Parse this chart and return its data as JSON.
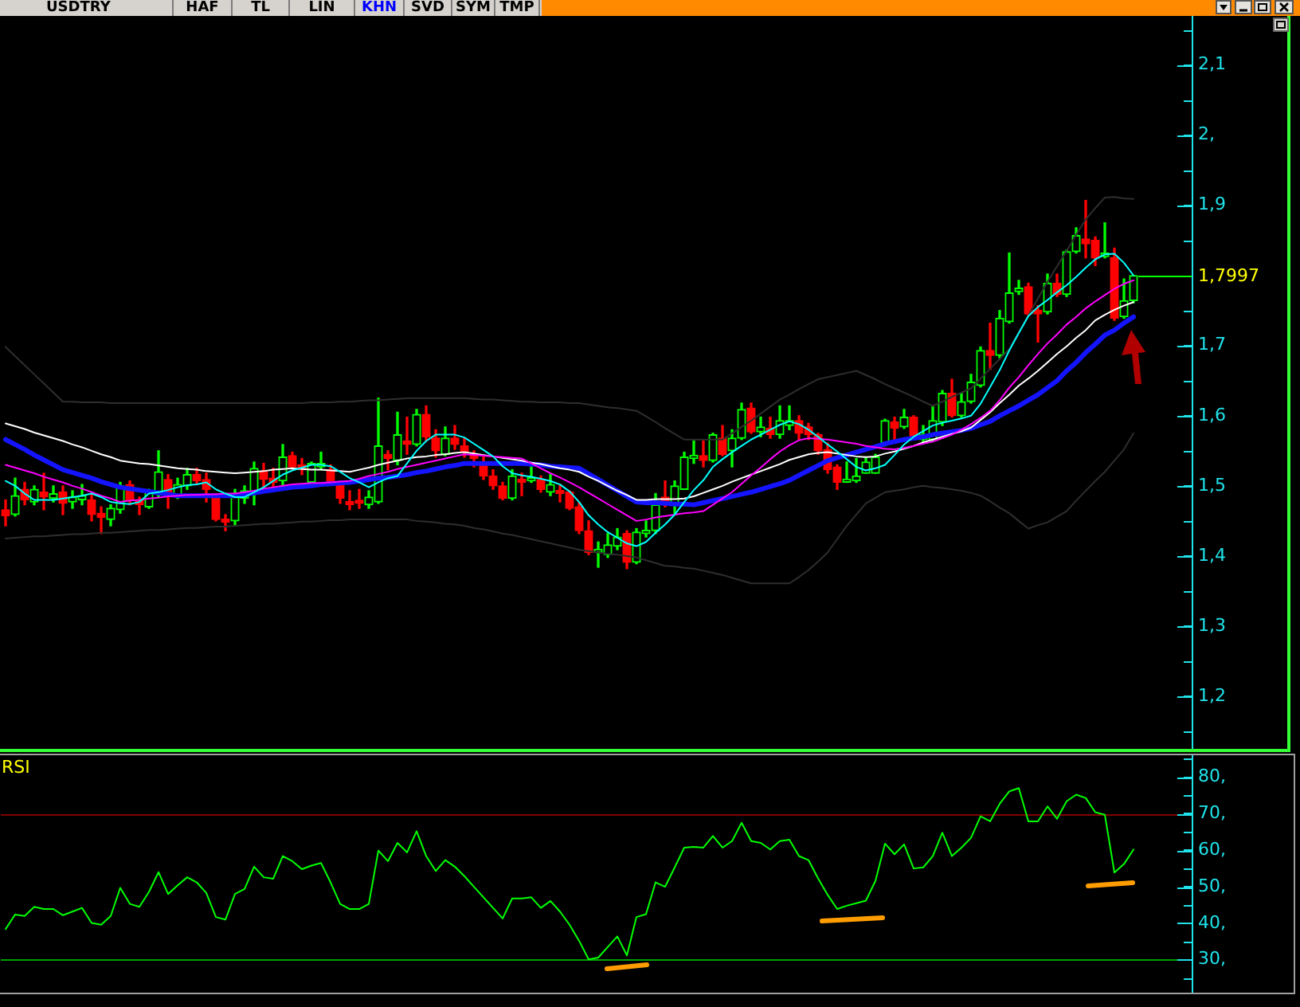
{
  "chart_data": [
    {
      "type": "candlestick",
      "title": "USDTRY",
      "annotations": [
        "HAF",
        "TL",
        "LIN",
        "KHN",
        "SVD",
        "SYM",
        "TMP"
      ],
      "categories": [
        null,
        null,
        null,
        null,
        null,
        null,
        null,
        null,
        null,
        null,
        null,
        null,
        null,
        null,
        null,
        null,
        null,
        null,
        null,
        null,
        null,
        null,
        null,
        null,
        null,
        null,
        null,
        null,
        null,
        null,
        null,
        null,
        null,
        null,
        null,
        null,
        null,
        null,
        null,
        null,
        null,
        null,
        null,
        null,
        null,
        null,
        null,
        null,
        null,
        null,
        null,
        null,
        null,
        null,
        null,
        null,
        null,
        null,
        null,
        null,
        null,
        null,
        null,
        null,
        null,
        null,
        null,
        null,
        null,
        null,
        null,
        null,
        null,
        null,
        null,
        null,
        null,
        null,
        null,
        null,
        null,
        null,
        null,
        null,
        null,
        null,
        null,
        null,
        null,
        null,
        null,
        null,
        null,
        null,
        null,
        null,
        null,
        null,
        null,
        null,
        null,
        null,
        null,
        null,
        null,
        null,
        null,
        null,
        null,
        null,
        null,
        null,
        null,
        null,
        null,
        null,
        null,
        null,
        null
      ],
      "ohlc": [
        [
          1.466,
          1.48,
          1.443,
          1.457
        ],
        [
          1.459,
          1.511,
          1.457,
          1.486
        ],
        [
          1.495,
          1.505,
          1.473,
          1.48
        ],
        [
          1.477,
          1.5,
          1.473,
          1.495
        ],
        [
          1.491,
          1.518,
          1.466,
          1.484
        ],
        [
          1.482,
          1.5,
          1.477,
          1.489
        ],
        [
          1.491,
          1.5,
          1.459,
          1.475
        ],
        [
          1.477,
          1.493,
          1.468,
          1.484
        ],
        [
          1.48,
          1.502,
          1.473,
          1.486
        ],
        [
          1.48,
          1.489,
          1.45,
          1.459
        ],
        [
          1.461,
          1.47,
          1.432,
          1.455
        ],
        [
          1.452,
          1.473,
          1.443,
          1.468
        ],
        [
          1.466,
          1.505,
          1.461,
          1.5
        ],
        [
          1.502,
          1.507,
          1.473,
          1.48
        ],
        [
          1.48,
          1.484,
          1.459,
          1.473
        ],
        [
          1.47,
          1.495,
          1.468,
          1.493
        ],
        [
          1.489,
          1.55,
          1.484,
          1.52
        ],
        [
          1.509,
          1.516,
          1.468,
          1.491
        ],
        [
          1.486,
          1.511,
          1.482,
          1.502
        ],
        [
          1.5,
          1.525,
          1.495,
          1.516
        ],
        [
          1.516,
          1.525,
          1.502,
          1.507
        ],
        [
          1.509,
          1.518,
          1.477,
          1.495
        ],
        [
          1.482,
          1.489,
          1.45,
          1.452
        ],
        [
          1.452,
          1.459,
          1.436,
          1.448
        ],
        [
          1.45,
          1.495,
          1.443,
          1.484
        ],
        [
          1.482,
          1.5,
          1.475,
          1.493
        ],
        [
          1.491,
          1.534,
          1.473,
          1.525
        ],
        [
          1.52,
          1.532,
          1.498,
          1.509
        ],
        [
          1.511,
          1.525,
          1.495,
          1.505
        ],
        [
          1.507,
          1.559,
          1.5,
          1.541
        ],
        [
          1.543,
          1.548,
          1.523,
          1.527
        ],
        [
          1.53,
          1.539,
          1.516,
          1.523
        ],
        [
          1.505,
          1.534,
          1.502,
          1.532
        ],
        [
          1.527,
          1.548,
          1.523,
          1.532
        ],
        [
          1.523,
          1.53,
          1.502,
          1.505
        ],
        [
          1.505,
          1.507,
          1.475,
          1.482
        ],
        [
          1.477,
          1.493,
          1.466,
          1.473
        ],
        [
          1.477,
          1.495,
          1.468,
          1.475
        ],
        [
          1.473,
          1.493,
          1.468,
          1.484
        ],
        [
          1.477,
          1.625,
          1.475,
          1.557
        ],
        [
          1.545,
          1.55,
          1.523,
          1.539
        ],
        [
          1.536,
          1.605,
          1.53,
          1.573
        ],
        [
          1.564,
          1.598,
          1.545,
          1.559
        ],
        [
          1.559,
          1.609,
          1.557,
          1.602
        ],
        [
          1.602,
          1.614,
          1.564,
          1.57
        ],
        [
          1.568,
          1.58,
          1.541,
          1.55
        ],
        [
          1.545,
          1.584,
          1.543,
          1.568
        ],
        [
          1.568,
          1.586,
          1.552,
          1.559
        ],
        [
          1.557,
          1.568,
          1.541,
          1.548
        ],
        [
          1.545,
          1.55,
          1.527,
          1.539
        ],
        [
          1.534,
          1.541,
          1.509,
          1.514
        ],
        [
          1.514,
          1.523,
          1.495,
          1.5
        ],
        [
          1.5,
          1.505,
          1.48,
          1.482
        ],
        [
          1.482,
          1.523,
          1.48,
          1.514
        ],
        [
          1.507,
          1.518,
          1.486,
          1.505
        ],
        [
          1.507,
          1.527,
          1.505,
          1.511
        ],
        [
          1.509,
          1.514,
          1.491,
          1.495
        ],
        [
          1.491,
          1.516,
          1.486,
          1.502
        ],
        [
          1.491,
          1.502,
          1.477,
          1.489
        ],
        [
          1.491,
          1.493,
          1.466,
          1.468
        ],
        [
          1.47,
          1.477,
          1.432,
          1.436
        ],
        [
          1.436,
          1.45,
          1.402,
          1.405
        ],
        [
          1.405,
          1.42,
          1.384,
          1.407
        ],
        [
          1.402,
          1.432,
          1.398,
          1.416
        ],
        [
          1.414,
          1.439,
          1.409,
          1.427
        ],
        [
          1.432,
          1.436,
          1.382,
          1.391
        ],
        [
          1.391,
          1.439,
          1.389,
          1.434
        ],
        [
          1.432,
          1.45,
          1.427,
          1.436
        ],
        [
          1.436,
          1.489,
          1.432,
          1.473
        ],
        [
          1.484,
          1.507,
          1.47,
          1.473
        ],
        [
          1.473,
          1.507,
          1.461,
          1.5
        ],
        [
          1.495,
          1.548,
          1.495,
          1.541
        ],
        [
          1.539,
          1.564,
          1.532,
          1.541
        ],
        [
          1.543,
          1.564,
          1.527,
          1.536
        ],
        [
          1.536,
          1.575,
          1.534,
          1.573
        ],
        [
          1.568,
          1.586,
          1.543,
          1.545
        ],
        [
          1.55,
          1.58,
          1.527,
          1.568
        ],
        [
          1.568,
          1.618,
          1.566,
          1.609
        ],
        [
          1.611,
          1.618,
          1.575,
          1.577
        ],
        [
          1.577,
          1.598,
          1.57,
          1.584
        ],
        [
          1.582,
          1.598,
          1.568,
          1.573
        ],
        [
          1.573,
          1.614,
          1.568,
          1.593
        ],
        [
          1.586,
          1.614,
          1.58,
          1.593
        ],
        [
          1.593,
          1.6,
          1.566,
          1.575
        ],
        [
          1.584,
          1.589,
          1.566,
          1.573
        ],
        [
          1.573,
          1.575,
          1.545,
          1.55
        ],
        [
          1.552,
          1.561,
          1.518,
          1.523
        ],
        [
          1.527,
          1.53,
          1.495,
          1.505
        ],
        [
          1.505,
          1.534,
          1.505,
          1.509
        ],
        [
          1.507,
          1.539,
          1.505,
          1.514
        ],
        [
          1.518,
          1.541,
          1.518,
          1.534
        ],
        [
          1.518,
          1.545,
          1.518,
          1.541
        ],
        [
          1.561,
          1.595,
          1.557,
          1.593
        ],
        [
          1.591,
          1.598,
          1.564,
          1.582
        ],
        [
          1.584,
          1.609,
          1.582,
          1.598
        ],
        [
          1.598,
          1.6,
          1.566,
          1.568
        ],
        [
          1.566,
          1.586,
          1.561,
          1.573
        ],
        [
          1.566,
          1.614,
          1.564,
          1.593
        ],
        [
          1.591,
          1.636,
          1.586,
          1.632
        ],
        [
          1.632,
          1.652,
          1.598,
          1.6
        ],
        [
          1.6,
          1.632,
          1.598,
          1.62
        ],
        [
          1.62,
          1.659,
          1.618,
          1.648
        ],
        [
          1.643,
          1.698,
          1.641,
          1.693
        ],
        [
          1.693,
          1.732,
          1.666,
          1.686
        ],
        [
          1.686,
          1.75,
          1.682,
          1.739
        ],
        [
          1.734,
          1.832,
          1.732,
          1.775
        ],
        [
          1.777,
          1.793,
          1.773,
          1.782
        ],
        [
          1.784,
          1.789,
          1.743,
          1.745
        ],
        [
          1.75,
          1.757,
          1.705,
          1.745
        ],
        [
          1.748,
          1.802,
          1.745,
          1.789
        ],
        [
          1.789,
          1.802,
          1.77,
          1.773
        ],
        [
          1.773,
          1.836,
          1.77,
          1.834
        ],
        [
          1.834,
          1.868,
          1.832,
          1.857
        ],
        [
          1.852,
          1.907,
          1.825,
          1.845
        ],
        [
          1.85,
          1.855,
          1.814,
          1.825
        ],
        [
          1.827,
          1.875,
          1.825,
          1.832
        ],
        [
          1.825,
          1.839,
          1.736,
          1.739
        ],
        [
          1.741,
          1.795,
          1.739,
          1.764
        ],
        [
          1.764,
          1.8,
          1.761,
          1.7997
        ]
      ],
      "colors": [
        "#ff0000",
        "#00ff00",
        "#ff0000",
        "#00ff00",
        "#ff0000",
        "#00ff00",
        "#ff0000",
        "#00ff00",
        "#00ff00",
        "#ff0000",
        "#ff0000",
        "#00ff00",
        "#00ff00",
        "#ff0000",
        "#ff0000",
        "#00ff00",
        "#00ff00",
        "#ff0000",
        "#00ff00",
        "#00ff00",
        "#ff0000",
        "#ff0000",
        "#ff0000",
        "#ff0000",
        "#00ff00",
        "#00ff00",
        "#00ff00",
        "#ff0000",
        "#ff0000",
        "#00ff00",
        "#ff0000",
        "#ff0000",
        "#00ff00",
        "#00ff00",
        "#ff0000",
        "#ff0000",
        "#ff0000",
        "#ff0000",
        "#00ff00",
        "#00ff00",
        "#ff0000",
        "#00ff00",
        "#ff0000",
        "#00ff00",
        "#ff0000",
        "#ff0000",
        "#00ff00",
        "#ff0000",
        "#ff0000",
        "#ff0000",
        "#ff0000",
        "#ff0000",
        "#ff0000",
        "#00ff00",
        "#ff0000",
        "#00ff00",
        "#ff0000",
        "#00ff00",
        "#ff0000",
        "#ff0000",
        "#ff0000",
        "#ff0000",
        "#00ff00",
        "#00ff00",
        "#00ff00",
        "#ff0000",
        "#00ff00",
        "#00ff00",
        "#00ff00",
        "#ff0000",
        "#00ff00",
        "#00ff00",
        "#00ff00",
        "#ff0000",
        "#00ff00",
        "#ff0000",
        "#00ff00",
        "#00ff00",
        "#ff0000",
        "#00ff00",
        "#ff0000",
        "#00ff00",
        "#00ff00",
        "#ff0000",
        "#ff0000",
        "#ff0000",
        "#ff0000",
        "#ff0000",
        "#00ff00",
        "#00ff00",
        "#00ff00",
        "#00ff00",
        "#00ff00",
        "#ff0000",
        "#00ff00",
        "#ff0000",
        "#00ff00",
        "#00ff00",
        "#00ff00",
        "#ff0000",
        "#00ff00",
        "#00ff00",
        "#00ff00",
        "#ff0000",
        "#00ff00",
        "#00ff00",
        "#00ff00",
        "#ff0000",
        "#ff0000",
        "#00ff00",
        "#ff0000",
        "#00ff00",
        "#00ff00",
        "#ff0000",
        "#ff0000",
        "#00ff00",
        "#ff0000",
        "#00ff00",
        "#00ff00"
      ],
      "series": [
        {
          "type": "line",
          "color": "#2e2e2e",
          "values": [
            1.698,
            1.685,
            1.672,
            1.659,
            1.646,
            1.633,
            1.62,
            1.62,
            1.619,
            1.619,
            1.619,
            1.618,
            1.618,
            1.618,
            1.618,
            1.618,
            1.618,
            1.618,
            1.618,
            1.618,
            1.618,
            1.618,
            1.618,
            1.618,
            1.618,
            1.618,
            1.618,
            1.618,
            1.618,
            1.618,
            1.618,
            1.618,
            1.619,
            1.619,
            1.619,
            1.62,
            1.62,
            1.621,
            1.622,
            1.622,
            1.623,
            1.624,
            1.625,
            1.625,
            1.625,
            1.625,
            1.625,
            1.625,
            1.625,
            1.624,
            1.623,
            1.623,
            1.622,
            1.621,
            1.62,
            1.62,
            1.619,
            1.619,
            1.619,
            1.618,
            1.618,
            1.616,
            1.614,
            1.612,
            1.611,
            1.609,
            1.607,
            1.599,
            1.591,
            1.582,
            1.574,
            1.566,
            1.566,
            1.566,
            1.566,
            1.566,
            1.575,
            1.584,
            1.593,
            1.603,
            1.613,
            1.623,
            1.63,
            1.638,
            1.645,
            1.652,
            1.655,
            1.658,
            1.661,
            1.664,
            1.658,
            1.652,
            1.645,
            1.639,
            1.633,
            1.627,
            1.62,
            1.614,
            1.62,
            1.627,
            1.633,
            1.639,
            1.653,
            1.667,
            1.681,
            1.695,
            1.719,
            1.743,
            1.767,
            1.791,
            1.813,
            1.835,
            1.858,
            1.88,
            1.896,
            1.911,
            1.912,
            1.91,
            1.909
          ]
        },
        {
          "type": "line",
          "color": "#2e2e2e",
          "values": [
            1.425,
            1.426,
            1.427,
            1.428,
            1.428,
            1.429,
            1.43,
            1.431,
            1.431,
            1.432,
            1.433,
            1.433,
            1.434,
            1.435,
            1.436,
            1.437,
            1.437,
            1.438,
            1.439,
            1.44,
            1.44,
            1.441,
            1.442,
            1.442,
            1.443,
            1.444,
            1.445,
            1.446,
            1.446,
            1.447,
            1.448,
            1.449,
            1.449,
            1.45,
            1.451,
            1.451,
            1.452,
            1.452,
            1.452,
            1.452,
            1.452,
            1.452,
            1.452,
            1.45,
            1.449,
            1.448,
            1.446,
            1.445,
            1.443,
            1.44,
            1.438,
            1.435,
            1.432,
            1.43,
            1.427,
            1.424,
            1.421,
            1.418,
            1.415,
            1.412,
            1.409,
            1.407,
            1.405,
            1.403,
            1.402,
            1.4,
            1.398,
            1.394,
            1.39,
            1.386,
            1.385,
            1.383,
            1.382,
            1.379,
            1.376,
            1.373,
            1.369,
            1.365,
            1.361,
            1.361,
            1.361,
            1.361,
            1.361,
            1.37,
            1.38,
            1.392,
            1.405,
            1.424,
            1.443,
            1.459,
            1.475,
            1.483,
            1.491,
            1.493,
            1.495,
            1.498,
            1.5,
            1.498,
            1.497,
            1.495,
            1.493,
            1.49,
            1.486,
            1.478,
            1.469,
            1.461,
            1.45,
            1.439,
            1.444,
            1.448,
            1.456,
            1.464,
            1.479,
            1.493,
            1.507,
            1.52,
            1.536,
            1.552,
            1.575
          ]
        },
        {
          "type": "line",
          "color": "#1414ff",
          "values": [
            1.566,
            1.559,
            1.552,
            1.544,
            1.537,
            1.53,
            1.523,
            1.519,
            1.515,
            1.511,
            1.506,
            1.502,
            1.498,
            1.496,
            1.494,
            1.492,
            1.49,
            1.488,
            1.486,
            1.486,
            1.486,
            1.486,
            1.486,
            1.486,
            1.486,
            1.488,
            1.49,
            1.492,
            1.494,
            1.496,
            1.498,
            1.499,
            1.5,
            1.502,
            1.503,
            1.504,
            1.505,
            1.507,
            1.509,
            1.511,
            1.512,
            1.514,
            1.516,
            1.519,
            1.521,
            1.524,
            1.527,
            1.529,
            1.532,
            1.532,
            1.532,
            1.532,
            1.532,
            1.532,
            1.532,
            1.531,
            1.53,
            1.528,
            1.527,
            1.526,
            1.525,
            1.517,
            1.509,
            1.501,
            1.493,
            1.485,
            1.477,
            1.476,
            1.476,
            1.475,
            1.474,
            1.474,
            1.473,
            1.476,
            1.479,
            1.482,
            1.485,
            1.488,
            1.491,
            1.495,
            1.499,
            1.503,
            1.508,
            1.515,
            1.522,
            1.529,
            1.536,
            1.54,
            1.544,
            1.548,
            1.552,
            1.556,
            1.56,
            1.563,
            1.566,
            1.568,
            1.57,
            1.573,
            1.575,
            1.577,
            1.579,
            1.582,
            1.587,
            1.592,
            1.6,
            1.607,
            1.614,
            1.622,
            1.63,
            1.64,
            1.65,
            1.664,
            1.676,
            1.69,
            1.702,
            1.715,
            1.722,
            1.732,
            1.741
          ]
        },
        {
          "type": "line",
          "color": "#ffffff",
          "values": [
            1.589,
            1.585,
            1.581,
            1.576,
            1.572,
            1.568,
            1.564,
            1.559,
            1.555,
            1.55,
            1.545,
            1.541,
            1.536,
            1.534,
            1.532,
            1.531,
            1.529,
            1.527,
            1.525,
            1.524,
            1.523,
            1.521,
            1.52,
            1.519,
            1.518,
            1.519,
            1.52,
            1.521,
            1.523,
            1.524,
            1.525,
            1.524,
            1.523,
            1.523,
            1.522,
            1.521,
            1.52,
            1.523,
            1.526,
            1.53,
            1.533,
            1.536,
            1.539,
            1.541,
            1.542,
            1.544,
            1.545,
            1.547,
            1.548,
            1.546,
            1.544,
            1.542,
            1.54,
            1.538,
            1.536,
            1.533,
            1.531,
            1.528,
            1.525,
            1.523,
            1.52,
            1.513,
            1.507,
            1.5,
            1.493,
            1.487,
            1.48,
            1.48,
            1.481,
            1.481,
            1.481,
            1.482,
            1.485,
            1.49,
            1.495,
            1.5,
            1.506,
            1.511,
            1.516,
            1.521,
            1.526,
            1.531,
            1.537,
            1.541,
            1.545,
            1.547,
            1.548,
            1.546,
            1.544,
            1.542,
            1.541,
            1.542,
            1.546,
            1.549,
            1.553,
            1.557,
            1.562,
            1.566,
            1.57,
            1.574,
            1.578,
            1.583,
            1.594,
            1.605,
            1.618,
            1.63,
            1.643,
            1.653,
            1.664,
            1.676,
            1.688,
            1.699,
            1.711,
            1.722,
            1.736,
            1.744,
            1.751,
            1.757,
            1.762
          ]
        },
        {
          "type": "line",
          "color": "#ff00ff",
          "values": [
            1.53,
            1.526,
            1.522,
            1.518,
            1.513,
            1.509,
            1.505,
            1.5,
            1.496,
            1.491,
            1.486,
            1.482,
            1.477,
            1.479,
            1.48,
            1.482,
            1.483,
            1.485,
            1.486,
            1.487,
            1.487,
            1.488,
            1.488,
            1.489,
            1.489,
            1.491,
            1.493,
            1.496,
            1.498,
            1.5,
            1.502,
            1.503,
            1.504,
            1.504,
            1.505,
            1.506,
            1.507,
            1.51,
            1.514,
            1.517,
            1.52,
            1.524,
            1.527,
            1.53,
            1.533,
            1.536,
            1.539,
            1.542,
            1.545,
            1.544,
            1.543,
            1.542,
            1.541,
            1.54,
            1.539,
            1.532,
            1.525,
            1.518,
            1.512,
            1.505,
            1.498,
            1.49,
            1.482,
            1.474,
            1.466,
            1.458,
            1.45,
            1.452,
            1.455,
            1.457,
            1.459,
            1.461,
            1.462,
            1.464,
            1.473,
            1.482,
            1.491,
            1.503,
            1.515,
            1.526,
            1.538,
            1.549,
            1.558,
            1.565,
            1.568,
            1.567,
            1.566,
            1.564,
            1.562,
            1.56,
            1.557,
            1.555,
            1.553,
            1.552,
            1.554,
            1.557,
            1.56,
            1.563,
            1.568,
            1.573,
            1.58,
            1.588,
            1.597,
            1.607,
            1.622,
            1.64,
            1.655,
            1.672,
            1.688,
            1.703,
            1.716,
            1.73,
            1.741,
            1.753,
            1.763,
            1.772,
            1.781,
            1.788,
            1.793
          ]
        },
        {
          "type": "line",
          "color": "#00ffff",
          "values": [
            1.507,
            1.5,
            1.489,
            1.48,
            1.48,
            1.48,
            1.482,
            1.484,
            1.486,
            1.489,
            1.484,
            1.477,
            1.475,
            1.474,
            1.477,
            1.489,
            1.491,
            1.494,
            1.498,
            1.501,
            1.502,
            1.505,
            1.495,
            1.489,
            1.484,
            1.484,
            1.491,
            1.498,
            1.507,
            1.516,
            1.522,
            1.526,
            1.53,
            1.53,
            1.528,
            1.52,
            1.511,
            1.505,
            1.498,
            1.505,
            1.511,
            1.514,
            1.532,
            1.55,
            1.564,
            1.573,
            1.573,
            1.573,
            1.569,
            1.56,
            1.551,
            1.542,
            1.528,
            1.518,
            1.515,
            1.513,
            1.51,
            1.507,
            1.502,
            1.492,
            1.477,
            1.458,
            1.445,
            1.434,
            1.426,
            1.418,
            1.414,
            1.42,
            1.433,
            1.445,
            1.459,
            1.477,
            1.494,
            1.508,
            1.527,
            1.538,
            1.548,
            1.557,
            1.566,
            1.573,
            1.58,
            1.587,
            1.592,
            1.588,
            1.58,
            1.57,
            1.559,
            1.549,
            1.538,
            1.527,
            1.522,
            1.525,
            1.53,
            1.544,
            1.559,
            1.57,
            1.578,
            1.586,
            1.59,
            1.593,
            1.596,
            1.6,
            1.617,
            1.641,
            1.665,
            1.693,
            1.718,
            1.742,
            1.755,
            1.765,
            1.776,
            1.786,
            1.798,
            1.811,
            1.823,
            1.83,
            1.831,
            1.818,
            1.8
          ]
        }
      ],
      "ylim": [
        1.125,
        2.17
      ],
      "yticks": [
        {
          "value": 1.2,
          "label": "1,2"
        },
        {
          "value": 1.3,
          "label": "1,3"
        },
        {
          "value": 1.4,
          "label": "1,4"
        },
        {
          "value": 1.5,
          "label": "1,5"
        },
        {
          "value": 1.6,
          "label": "1,6"
        },
        {
          "value": 1.7,
          "label": "1,7"
        },
        {
          "value": 1.9,
          "label": "1,9"
        },
        {
          "value": 2,
          "label": "2,"
        },
        {
          "value": 2.1,
          "label": "2,1"
        }
      ],
      "ref_lines": [
        {
          "axis": "y",
          "value": 1.7997,
          "label": "1,7997",
          "color": "#00ff00"
        }
      ],
      "tick_labels": "y",
      "legend": false,
      "grid": false
    },
    {
      "type": "line",
      "title": "RSI",
      "categories": [
        null,
        null,
        null,
        null,
        null,
        null,
        null,
        null,
        null,
        null,
        null,
        null,
        null,
        null,
        null,
        null,
        null,
        null,
        null,
        null,
        null,
        null,
        null,
        null,
        null,
        null,
        null,
        null,
        null,
        null,
        null,
        null,
        null,
        null,
        null,
        null,
        null,
        null,
        null,
        null,
        null,
        null,
        null,
        null,
        null,
        null,
        null,
        null,
        null,
        null,
        null,
        null,
        null,
        null,
        null,
        null,
        null,
        null,
        null,
        null,
        null,
        null,
        null,
        null,
        null,
        null,
        null,
        null,
        null,
        null,
        null,
        null,
        null,
        null,
        null,
        null,
        null,
        null,
        null,
        null,
        null,
        null,
        null,
        null,
        null,
        null,
        null,
        null,
        null,
        null,
        null,
        null,
        null,
        null,
        null,
        null,
        null,
        null,
        null,
        null,
        null,
        null,
        null,
        null,
        null,
        null,
        null,
        null,
        null,
        null,
        null,
        null,
        null,
        null,
        null,
        null,
        null,
        null,
        null
      ],
      "values": [
        38.4,
        42.4,
        42,
        44.5,
        43.9,
        43.9,
        42.2,
        43.2,
        44.2,
        40.1,
        39.6,
        42,
        49.7,
        45.3,
        44.5,
        48.6,
        54,
        48,
        50.4,
        52.6,
        51.2,
        48.3,
        41.7,
        41,
        48,
        49.4,
        55.5,
        52.6,
        52.2,
        58.4,
        57,
        54.8,
        55.8,
        56.5,
        51.2,
        45.3,
        43.9,
        43.9,
        45.3,
        59.9,
        57,
        62,
        59.4,
        65.2,
        58.4,
        54.3,
        57.3,
        55.5,
        52.9,
        50,
        47.1,
        44.2,
        41.3,
        46.8,
        46.8,
        47.1,
        44.2,
        46.1,
        43.2,
        39.6,
        35.2,
        30.1,
        30.6,
        33.5,
        36.4,
        31.2,
        41.7,
        42.5,
        51.2,
        50,
        55.3,
        60.7,
        60.9,
        60.7,
        63.9,
        60.7,
        62.5,
        67.5,
        62.5,
        62,
        60.2,
        62.5,
        62.9,
        58.4,
        57.3,
        52.3,
        47.8,
        43.9,
        44.8,
        45.5,
        46.2,
        51.6,
        61.8,
        58.9,
        61.6,
        55,
        55.3,
        58.4,
        64.8,
        58.4,
        60.7,
        63.4,
        69.3,
        67.9,
        72.7,
        76.1,
        77,
        67.9,
        67.9,
        72,
        68.6,
        73.4,
        75.2,
        74.3,
        70.4,
        69.7,
        53.9,
        56.2,
        60.2
      ],
      "color": "#00ff00",
      "ylim": [
        21,
        86
      ],
      "yticks": [
        {
          "value": 30,
          "label": "30,"
        },
        {
          "value": 40,
          "label": "40,"
        },
        {
          "value": 50,
          "label": "50,"
        },
        {
          "value": 60,
          "label": "60,"
        },
        {
          "value": 70,
          "label": "70,"
        },
        {
          "value": 80,
          "label": "80,"
        }
      ],
      "ref_lines": [
        {
          "axis": "y",
          "value": 70,
          "color": "#800000"
        },
        {
          "axis": "y",
          "value": 30,
          "color": "#00a000"
        }
      ],
      "tick_labels": "y",
      "legend": false,
      "grid": false
    }
  ]
}
